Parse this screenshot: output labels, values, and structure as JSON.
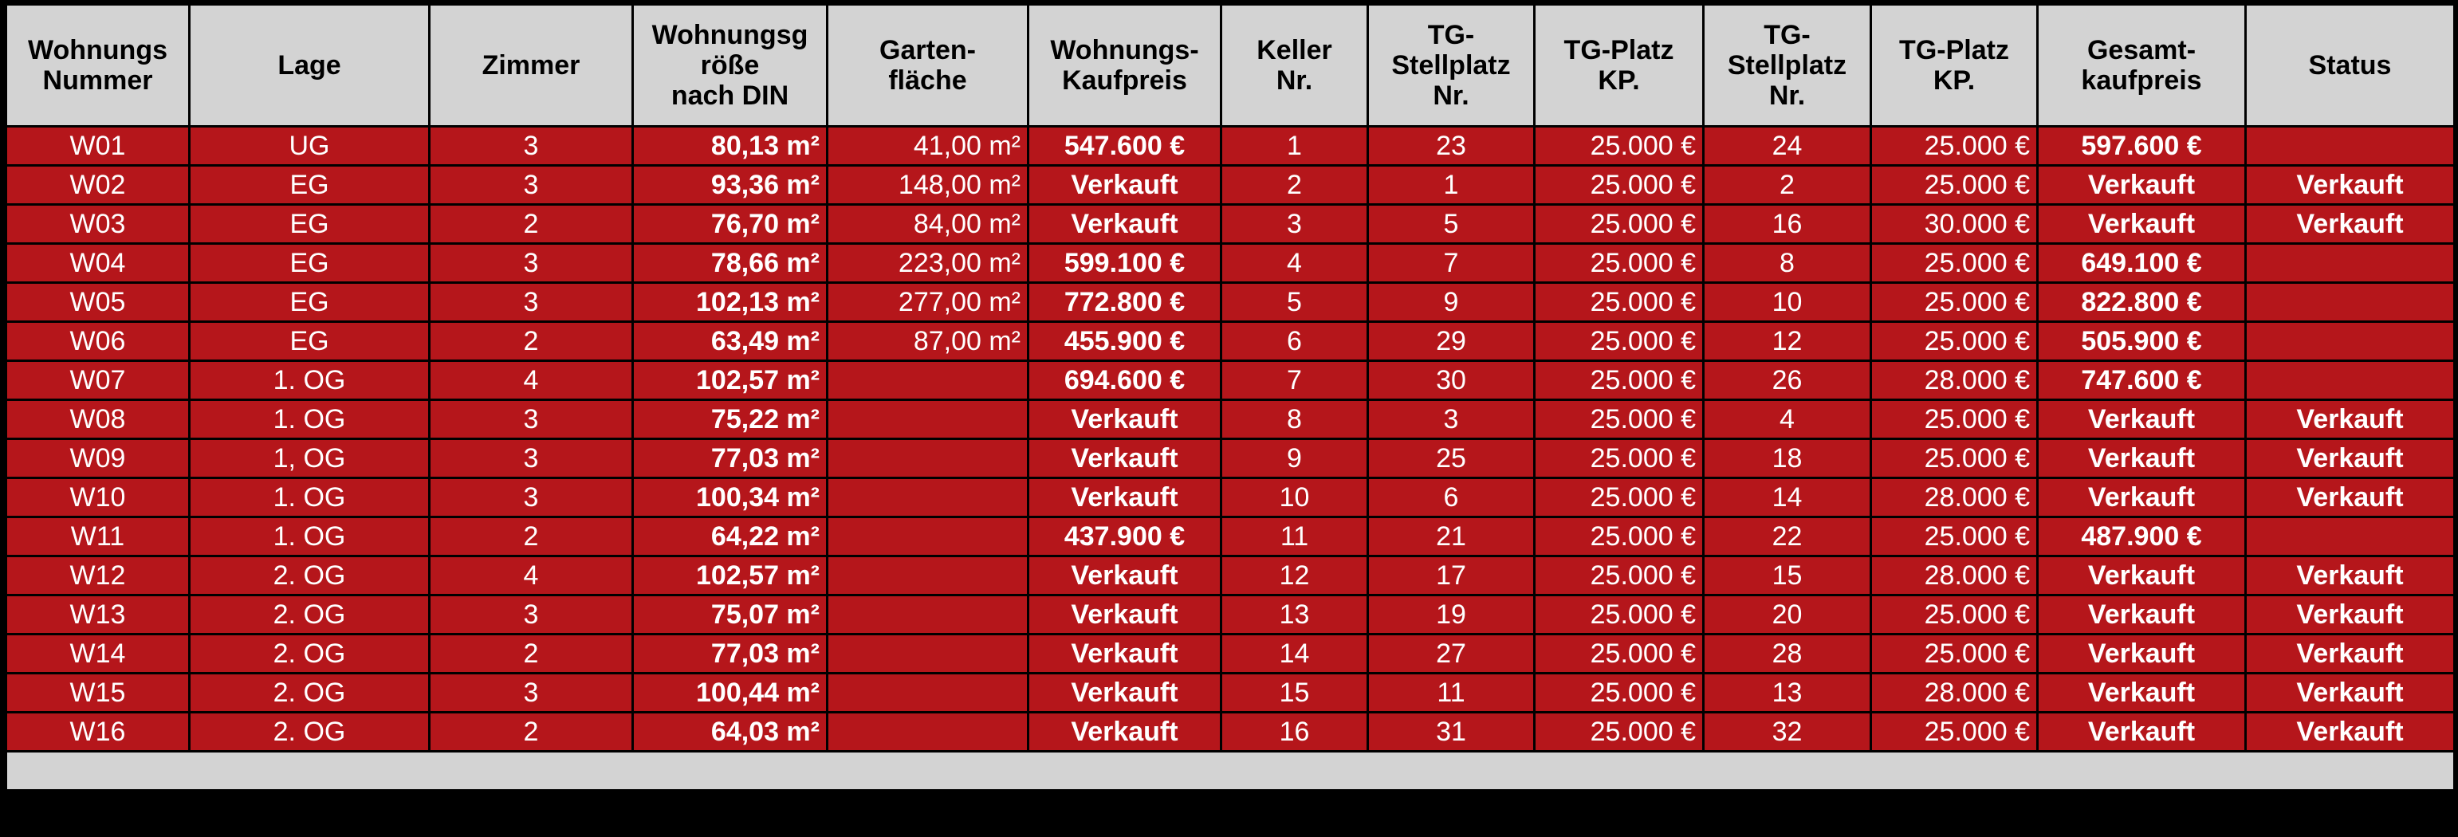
{
  "table": {
    "header": [
      [
        "Wohnungs",
        "Nummer"
      ],
      [
        "Lage"
      ],
      [
        "Zimmer"
      ],
      [
        "Wohnungsg",
        "röße",
        "nach DIN"
      ],
      [
        "Garten-",
        "fläche"
      ],
      [
        "Wohnungs-",
        "Kaufpreis"
      ],
      [
        "Keller",
        "Nr."
      ],
      [
        "TG-",
        "Stellplatz",
        "Nr."
      ],
      [
        "TG-Platz",
        "KP."
      ],
      [
        "TG-",
        "Stellplatz",
        "Nr."
      ],
      [
        "TG-Platz",
        "KP."
      ],
      [
        "Gesamt-",
        "kaufpreis"
      ],
      [
        "Status"
      ]
    ],
    "rows": [
      [
        "W01",
        "UG",
        "3",
        "80,13 m²",
        "41,00 m²",
        "547.600 €",
        "1",
        "23",
        "25.000 €",
        "24",
        "25.000 €",
        "597.600 €",
        null
      ],
      [
        "W02",
        "EG",
        "3",
        "93,36 m²",
        "148,00 m²",
        "Verkauft",
        "2",
        "1",
        "25.000 €",
        "2",
        "25.000 €",
        "Verkauft",
        "Verkauft"
      ],
      [
        "W03",
        "EG",
        "2",
        "76,70 m²",
        "84,00 m²",
        "Verkauft",
        "3",
        "5",
        "25.000 €",
        "16",
        "30.000 €",
        "Verkauft",
        "Verkauft"
      ],
      [
        "W04",
        "EG",
        "3",
        "78,66 m²",
        "223,00 m²",
        "599.100 €",
        "4",
        "7",
        "25.000 €",
        "8",
        "25.000 €",
        "649.100 €",
        null
      ],
      [
        "W05",
        "EG",
        "3",
        "102,13 m²",
        "277,00 m²",
        "772.800 €",
        "5",
        "9",
        "25.000 €",
        "10",
        "25.000 €",
        "822.800 €",
        null
      ],
      [
        "W06",
        "EG",
        "2",
        "63,49 m²",
        "87,00 m²",
        "455.900 €",
        "6",
        "29",
        "25.000 €",
        "12",
        "25.000 €",
        "505.900 €",
        null
      ],
      [
        "W07",
        "1. OG",
        "4",
        "102,57 m²",
        null,
        "694.600 €",
        "7",
        "30",
        "25.000 €",
        "26",
        "28.000 €",
        "747.600 €",
        null
      ],
      [
        "W08",
        "1. OG",
        "3",
        "75,22 m²",
        null,
        "Verkauft",
        "8",
        "3",
        "25.000 €",
        "4",
        "25.000 €",
        "Verkauft",
        "Verkauft"
      ],
      [
        "W09",
        "1, OG",
        "3",
        "77,03 m²",
        null,
        "Verkauft",
        "9",
        "25",
        "25.000 €",
        "18",
        "25.000 €",
        "Verkauft",
        "Verkauft"
      ],
      [
        "W10",
        "1. OG",
        "3",
        "100,34 m²",
        null,
        "Verkauft",
        "10",
        "6",
        "25.000 €",
        "14",
        "28.000 €",
        "Verkauft",
        "Verkauft"
      ],
      [
        "W11",
        "1. OG",
        "2",
        "64,22 m²",
        null,
        "437.900 €",
        "11",
        "21",
        "25.000 €",
        "22",
        "25.000 €",
        "487.900 €",
        null
      ],
      [
        "W12",
        "2. OG",
        "4",
        "102,57 m²",
        null,
        "Verkauft",
        "12",
        "17",
        "25.000 €",
        "15",
        "28.000 €",
        "Verkauft",
        "Verkauft"
      ],
      [
        "W13",
        "2. OG",
        "3",
        "75,07 m²",
        null,
        "Verkauft",
        "13",
        "19",
        "25.000 €",
        "20",
        "25.000 €",
        "Verkauft",
        "Verkauft"
      ],
      [
        "W14",
        "2. OG",
        "2",
        "77,03 m²",
        null,
        "Verkauft",
        "14",
        "27",
        "25.000 €",
        "28",
        "25.000 €",
        "Verkauft",
        "Verkauft"
      ],
      [
        "W15",
        "2. OG",
        "3",
        "100,44 m²",
        null,
        "Verkauft",
        "15",
        "11",
        "25.000 €",
        "13",
        "28.000 €",
        "Verkauft",
        "Verkauft"
      ],
      [
        "W16",
        "2. OG",
        "2",
        "64,03 m²",
        null,
        "Verkauft",
        "16",
        "31",
        "25.000 €",
        "32",
        "25.000 €",
        "Verkauft",
        "Verkauft"
      ]
    ]
  }
}
